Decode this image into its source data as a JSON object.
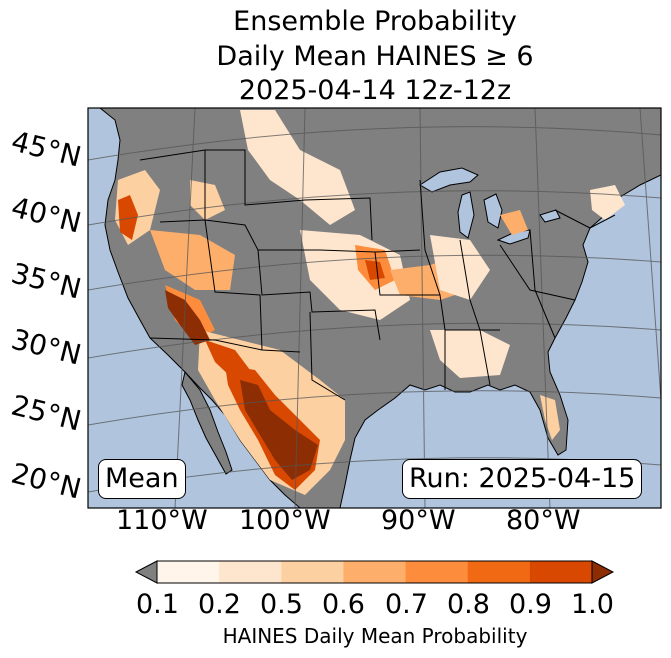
{
  "title": {
    "line1": "Ensemble Probability",
    "line2": "Daily Mean HAINES ≥ 6",
    "line3": "2025-04-14 12z-12z"
  },
  "map": {
    "lat_labels": [
      "45°N",
      "40°N",
      "35°N",
      "30°N",
      "25°N",
      "20°N"
    ],
    "lon_labels": [
      "110°W",
      "100°W",
      "90°W",
      "80°W"
    ],
    "mean_label": "Mean",
    "run_label": "Run: 2025-04-15",
    "colors": {
      "ocean": "#b0c4de",
      "land_no_data": "#808080",
      "grid": "#555555"
    }
  },
  "colorbar": {
    "label": "HAINES Daily Mean Probability",
    "ticks": [
      "0.1",
      "0.2",
      "0.5",
      "0.6",
      "0.7",
      "0.8",
      "0.9",
      "1.0"
    ],
    "under_color": "#808080",
    "bins": [
      "#fff5eb",
      "#fee6ce",
      "#fdd0a2",
      "#fdae6b",
      "#fd8d3c",
      "#f16913",
      "#d94801",
      "#8c2d04"
    ]
  }
}
